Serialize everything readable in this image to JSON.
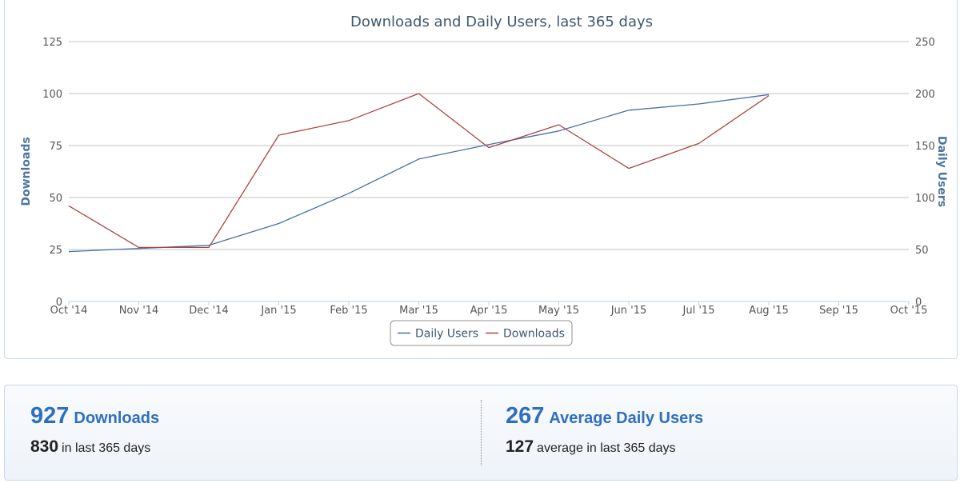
{
  "chart_data": {
    "type": "line",
    "title": "Downloads and Daily Users, last 365 days",
    "x_ticks": [
      "Oct '14",
      "Nov '14",
      "Dec '14",
      "Jan '15",
      "Feb '15",
      "Mar '15",
      "Apr '15",
      "May '15",
      "Jun '15",
      "Jul '15",
      "Aug '15",
      "Sep '15",
      "Oct '15"
    ],
    "x": [
      "Oct '14",
      "Nov '14",
      "Dec '14",
      "Jan '15",
      "Feb '15",
      "Mar '15",
      "Apr '15",
      "May '15",
      "Jun '15",
      "Jul '15",
      "Aug '15"
    ],
    "series": [
      {
        "name": "Daily Users",
        "axis": "right",
        "color": "#4572a7",
        "values": [
          48,
          51,
          54,
          75,
          104,
          137,
          151,
          164,
          184,
          190,
          199
        ]
      },
      {
        "name": "Downloads",
        "axis": "left",
        "color": "#aa4643",
        "values": [
          46,
          26,
          26,
          80,
          87,
          100,
          74,
          85,
          64,
          76,
          99
        ]
      }
    ],
    "y_left": {
      "label": "Downloads",
      "min": 0,
      "max": 125,
      "ticks": [
        "0",
        "25",
        "50",
        "75",
        "100",
        "125"
      ]
    },
    "y_right": {
      "label": "Daily Users",
      "min": 0,
      "max": 250,
      "ticks": [
        "0",
        "50",
        "100",
        "150",
        "200",
        "250"
      ]
    },
    "legend_position": "bottom-center",
    "grid": true
  },
  "stats": {
    "downloads": {
      "total": "927",
      "label": "Downloads",
      "recent": "830",
      "recent_text": "in last 365 days"
    },
    "users": {
      "total": "267",
      "label": "Average Daily Users",
      "recent": "127",
      "recent_text": "average in last 365 days"
    }
  }
}
